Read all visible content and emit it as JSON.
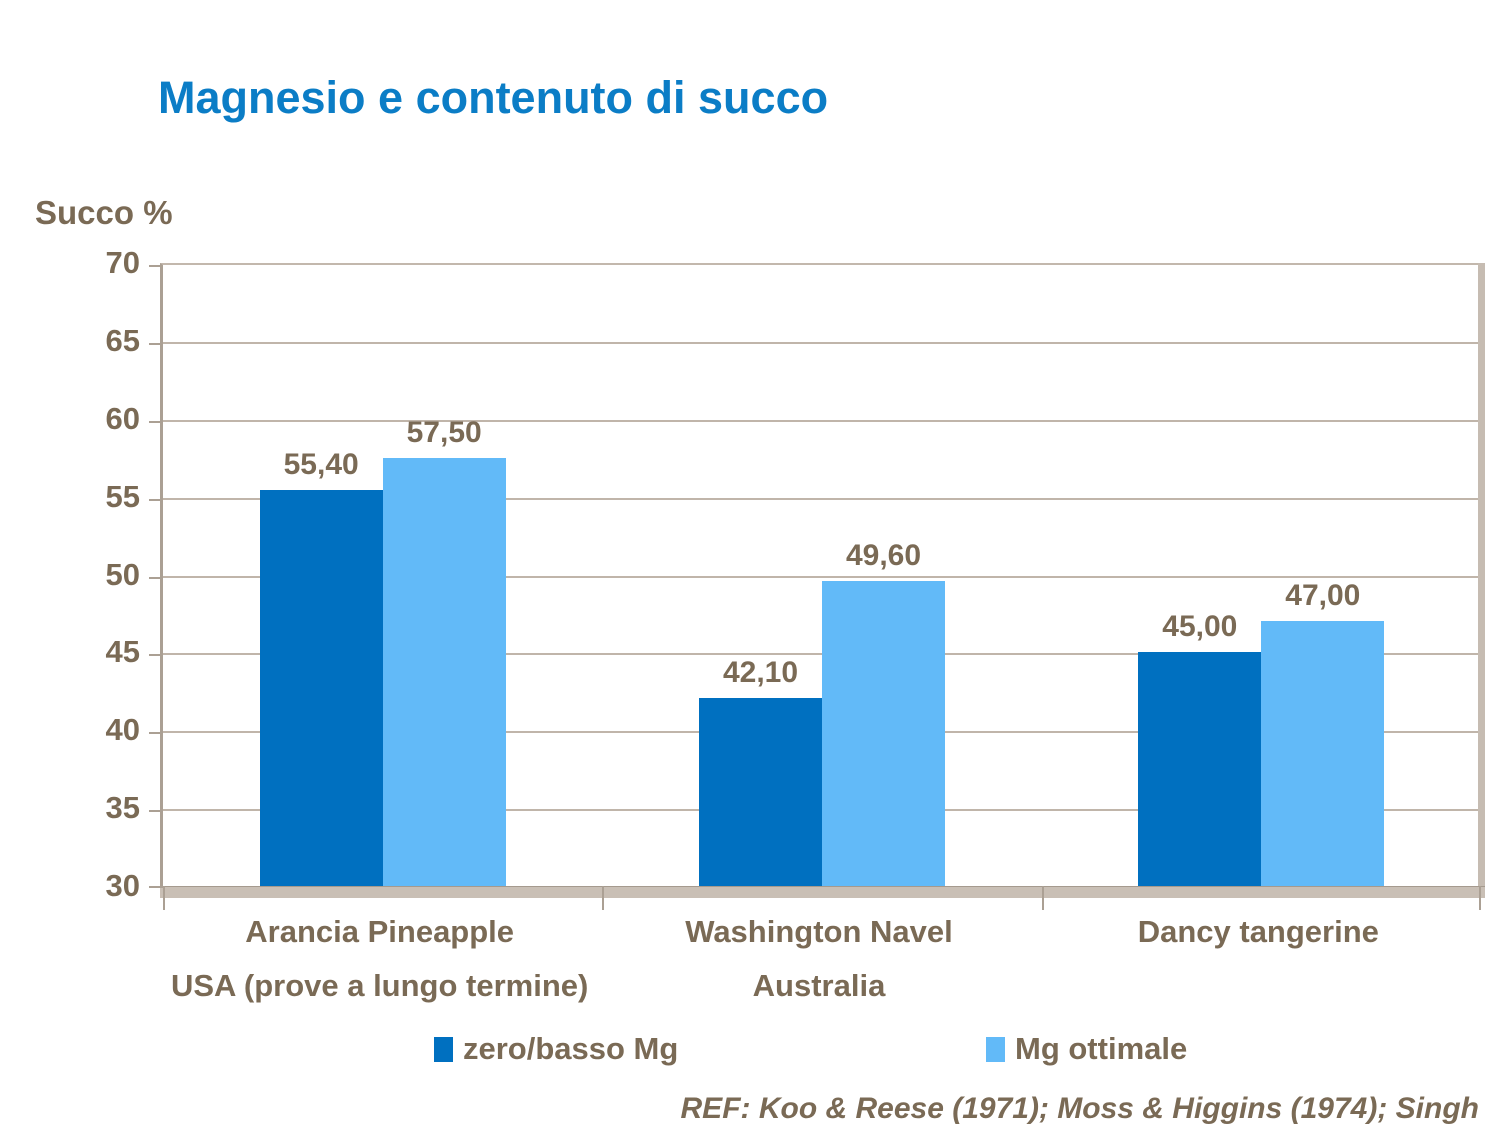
{
  "slide": {
    "background": "#ffffff"
  },
  "colors": {
    "title_blue": "#0b7dc6",
    "text_brown": "#7a6a55",
    "gridline_tan": "#c0b5aa",
    "axis_line": "#aba094",
    "wall_floor": "#c9bfb5",
    "series_dark_blue": "#0070c0",
    "series_light_blue": "#62baf8"
  },
  "chart_data": {
    "type": "bar",
    "title": "Magnesio e contenuto di succo",
    "y_axis_title": "Succo %",
    "ymin": 30,
    "ymax": 70,
    "ystep": 5,
    "grid": true,
    "legend_position": "bottom",
    "y_tick_labels": [
      "70",
      "65",
      "60",
      "55",
      "50",
      "45",
      "40",
      "35",
      "30"
    ],
    "categories": [
      [
        "Arancia Pineapple",
        "USA (prove a lungo termine)"
      ],
      [
        "Washington Navel",
        "Australia"
      ],
      [
        "Dancy tangerine"
      ]
    ],
    "series": [
      {
        "name": "zero/basso Mg",
        "color": "#0070c0",
        "values": [
          55.4,
          42.1,
          45.0
        ],
        "labels": [
          "55,40",
          "42,10",
          "45,00"
        ]
      },
      {
        "name": "Mg ottimale",
        "color": "#62baf8",
        "values": [
          57.5,
          49.6,
          47.0
        ],
        "labels": [
          "57,50",
          "49,60",
          "47,00"
        ]
      }
    ],
    "footer": "REF: Koo & Reese (1971); Moss & Higgins (1974); Singh"
  }
}
